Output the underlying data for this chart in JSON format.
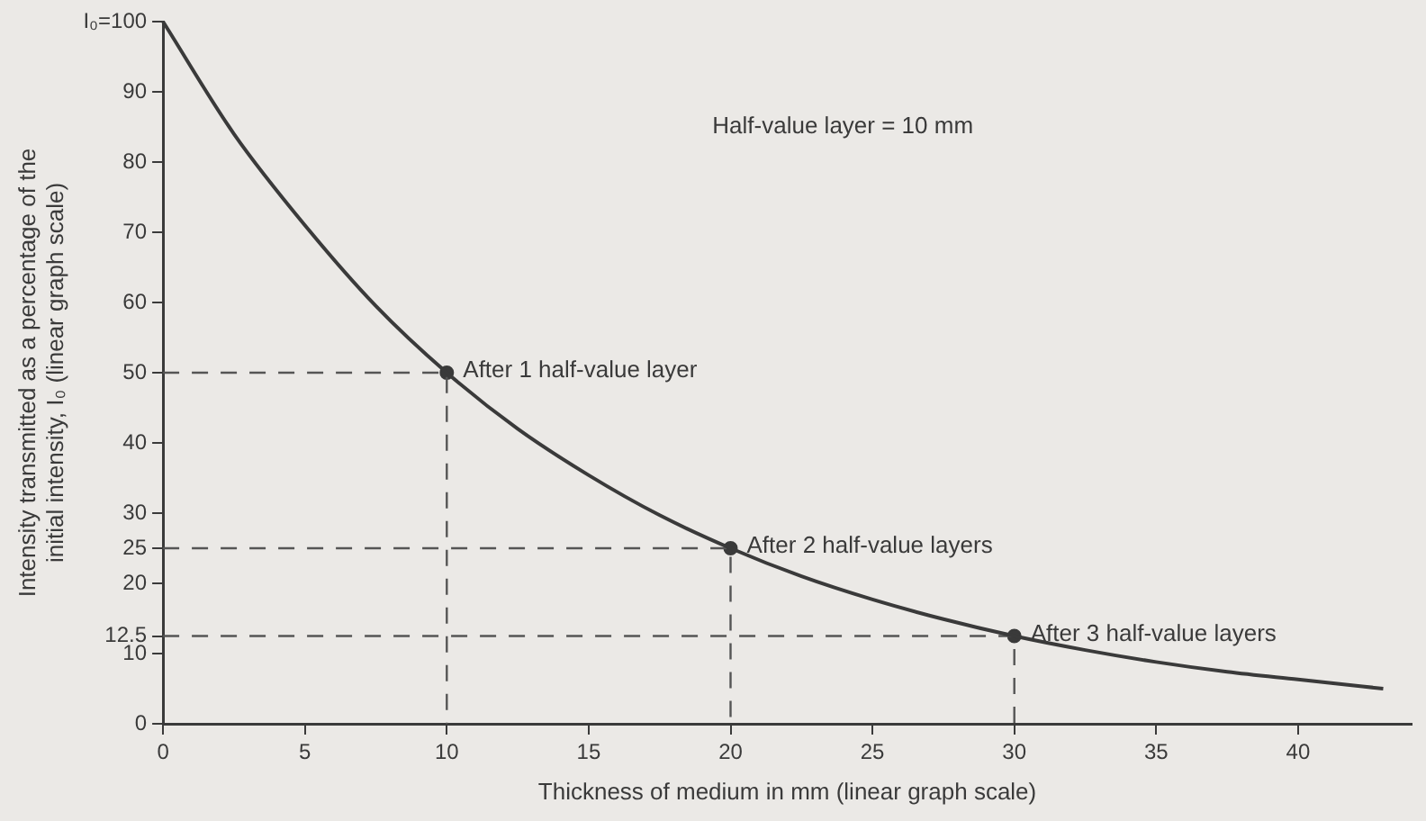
{
  "chart_data": {
    "type": "line",
    "xlabel": "Thickness of medium in mm (linear graph scale)",
    "ylabel": "Intensity transmitted as a percentage of the initial intensity, I₀ (linear graph scale)",
    "xlim": [
      0,
      44
    ],
    "xticks": [
      0,
      5,
      10,
      15,
      20,
      25,
      30,
      35,
      40
    ],
    "ylim": [
      0,
      100
    ],
    "yticks": [
      0,
      10,
      12.5,
      20,
      25,
      30,
      40,
      50,
      60,
      70,
      80,
      90,
      {
        "value": 100,
        "label": "I₀=100"
      }
    ],
    "grid": false,
    "legend": false,
    "marker": "none",
    "series": [
      {
        "color": "#3a3a3a",
        "line_style": "solid",
        "x": [
          0,
          2.5,
          5,
          7.5,
          10,
          12.5,
          15,
          17.5,
          20,
          22.5,
          25,
          27.5,
          30,
          32.5,
          35,
          37.5,
          40,
          43
        ],
        "values": [
          100,
          84,
          71,
          59.5,
          50,
          42,
          35.4,
          29.7,
          25,
          21,
          17.7,
          14.9,
          12.5,
          10.5,
          8.8,
          7.4,
          6.3,
          5
        ]
      },
      {
        "type": "line",
        "color": "#555555",
        "line_style": "dashed",
        "x": [
          0,
          10,
          10
        ],
        "values": [
          50,
          50,
          0
        ]
      },
      {
        "type": "line",
        "color": "#555555",
        "line_style": "dashed",
        "x": [
          0,
          20,
          20
        ],
        "values": [
          25,
          25,
          0
        ]
      },
      {
        "type": "line",
        "color": "#555555",
        "line_style": "dashed",
        "x": [
          0,
          30,
          30
        ],
        "values": [
          12.5,
          12.5,
          0
        ]
      },
      {
        "type": "scatter",
        "color": "#3a3a3a",
        "marker": "circle",
        "x": [
          10,
          20,
          30
        ],
        "values": [
          50,
          25,
          12.5
        ]
      }
    ],
    "annotations": [
      "Half-value layer = 10 mm",
      {
        "text": "After 1 half-value layer",
        "x": 10,
        "y": 50
      },
      {
        "text": "After 2 half-value layers",
        "x": 20,
        "y": 25
      },
      {
        "text": "After 3 half-value layers",
        "x": 30,
        "y": 12.5
      }
    ]
  }
}
